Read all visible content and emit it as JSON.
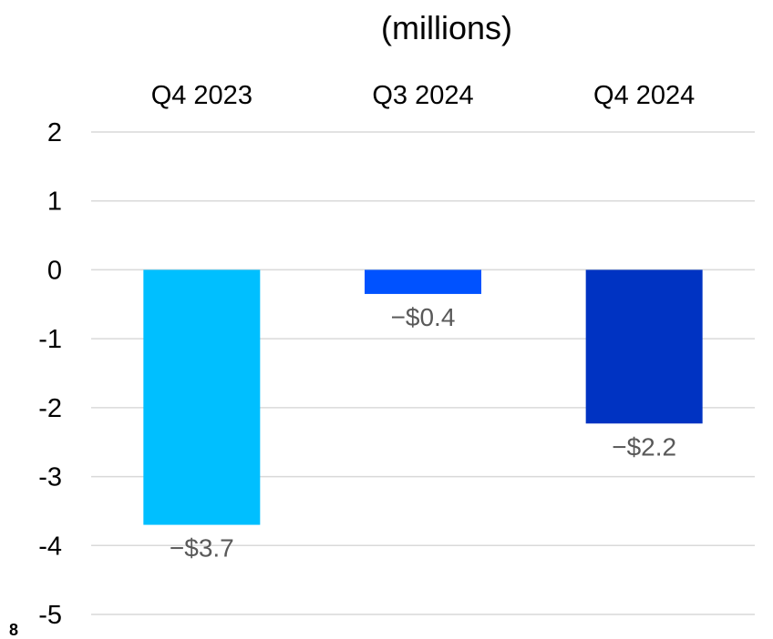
{
  "page_number": "8",
  "chart_data": {
    "type": "bar",
    "subtitle": "(millions)",
    "categories": [
      "Q4 2023",
      "Q3 2024",
      "Q4 2024"
    ],
    "values": [
      -3.7,
      -0.35,
      -2.23
    ],
    "data_labels": [
      "−$3.7",
      "−$0.4",
      "−$2.2"
    ],
    "colors": [
      "#00bfff",
      "#0052ff",
      "#0033c2"
    ],
    "ylim": [
      -5,
      2
    ],
    "yticks": [
      "2",
      "1",
      "0",
      "-1",
      "-2",
      "-3",
      "-4",
      "-5"
    ],
    "ytick_values": [
      2,
      1,
      0,
      -1,
      -2,
      -3,
      -4,
      -5
    ],
    "grid": true,
    "category_axis_position": "top",
    "legend": "none"
  }
}
